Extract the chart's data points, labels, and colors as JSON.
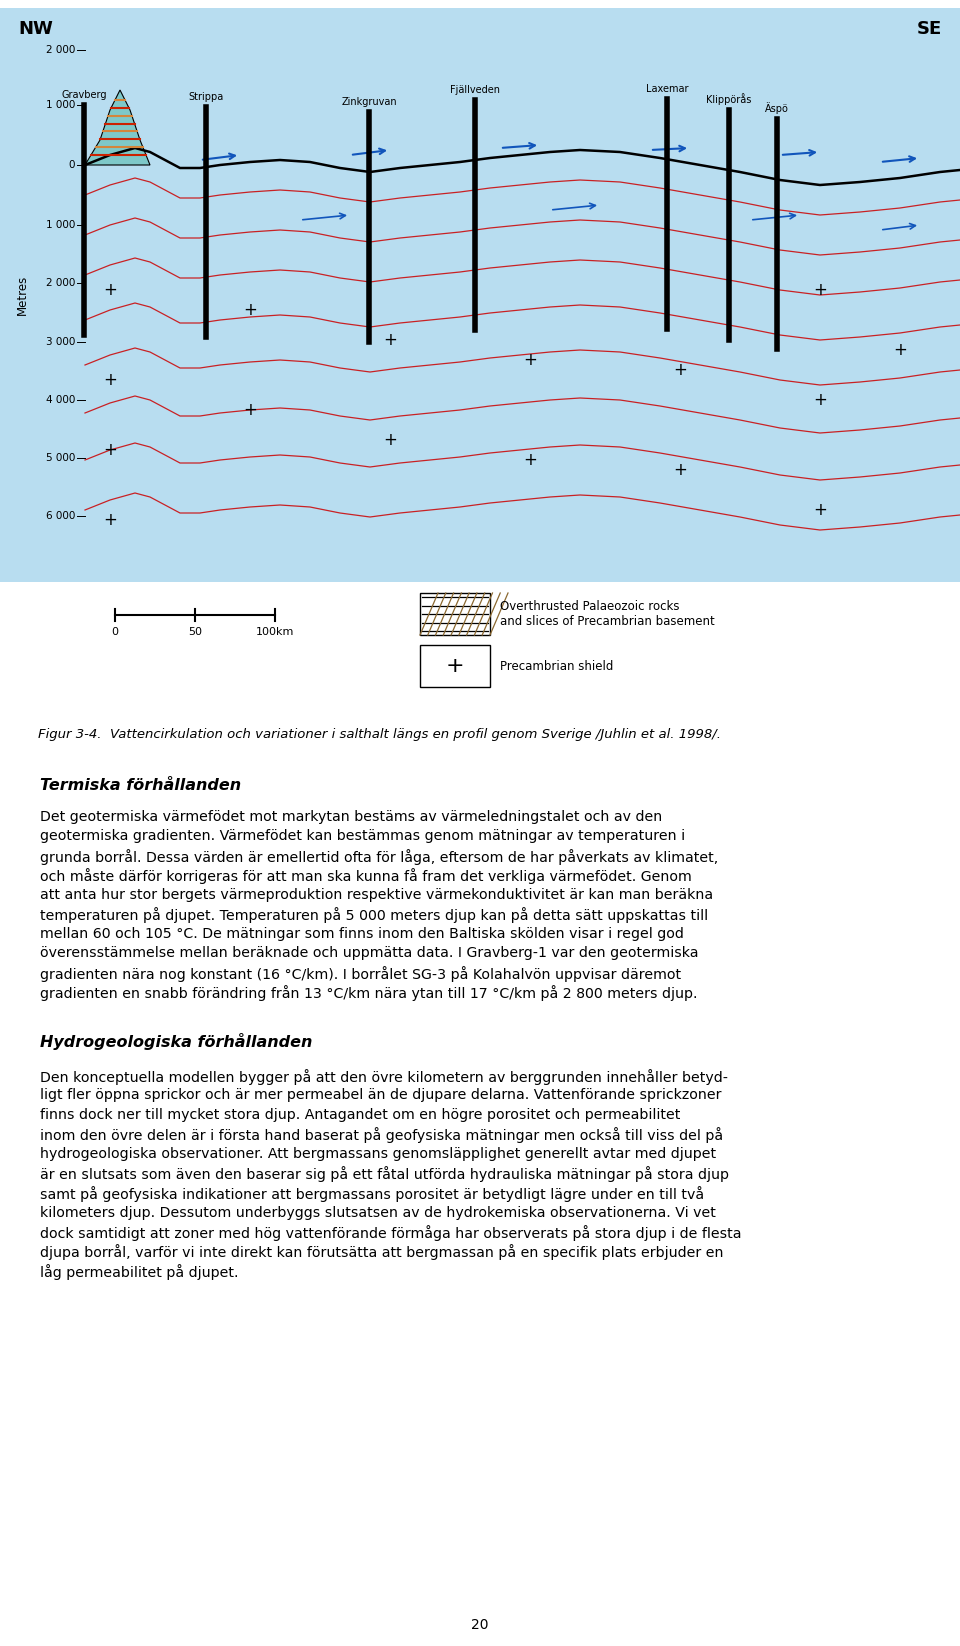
{
  "nw_label": "NW",
  "se_label": "SE",
  "fig_caption": "Figur 3-4.  Vattencirkulation och variationer i salthalt längs en profil genom Sverige /Juhlin et al. 1998/.",
  "section_heading_1": "Termiska förhållanden",
  "body_text_1_lines": [
    "Det geotermiska värmefödet mot markytan bestäms av värmeledningstalet och av den",
    "geotermiska gradienten. Värmefödet kan bestämmas genom mätningar av temperaturen i",
    "grunda borrål. Dessa värden är emellertid ofta för låga, eftersom de har påverkats av klimatet,",
    "och måste därför korrigeras för att man ska kunna få fram det verkliga värmefödet. Genom",
    "att anta hur stor bergets värmeproduktion respektive värmekonduktivitet är kan man beräkna",
    "temperaturen på djupet. Temperaturen på 5 000 meters djup kan på detta sätt uppskattas till",
    "mellan 60 och 105 °C. De mätningar som finns inom den Baltiska skölden visar i regel god",
    "överensstämmelse mellan beräknade och uppmätta data. I Gravberg-1 var den geotermiska",
    "gradienten nära nog konstant (16 °C/km). I borrålet SG-3 på Kolahalvön uppvisar däremot",
    "gradienten en snabb förändring från 13 °C/km nära ytan till 17 °C/km på 2 800 meters djup."
  ],
  "section_heading_2": "Hydrogeologiska förhållanden",
  "body_text_2_lines": [
    "Den konceptuella modellen bygger på att den övre kilometern av berggrunden innehåller betyd-",
    "ligt fler öppna sprickor och är mer permeabel än de djupare delarna. Vattenförande sprickzoner",
    "finns dock ner till mycket stora djup. Antagandet om en högre porositet och permeabilitet",
    "inom den övre delen är i första hand baserat på geofysiska mätningar men också till viss del på",
    "hydrogeologiska observationer. Att bergmassans genomsläpplighet generellt avtar med djupet",
    "är en slutsats som även den baserar sig på ett fåtal utförda hydrauliska mätningar på stora djup",
    "samt på geofysiska indikationer att bergmassans porositet är betydligt lägre under en till två",
    "kilometers djup. Dessutom underbyggs slutsatsen av de hydrokemiska observationerna. Vi vet",
    "dock samtidigt att zoner med hög vattenförande förmåga har observerats på stora djup i de flesta",
    "djupa borrål, varför vi inte direkt kan förutsätta att bergmassan på en specifik plats erbjuder en",
    "låg permeabilitet på djupet."
  ],
  "page_number": "20",
  "bg_color": "#ffffff",
  "metres_labels": [
    "2 000",
    "1 000",
    "0",
    "1 000",
    "2 000",
    "3 000",
    "4 000",
    "5 000",
    "6 000"
  ],
  "sites": [
    [
      "Gravberg",
      0.088
    ],
    [
      "Strippa",
      0.215
    ],
    [
      "Zinkgruvan",
      0.385
    ],
    [
      "Fjällveden",
      0.495
    ],
    [
      "Laxemar",
      0.695
    ],
    [
      "Äspö",
      0.81
    ],
    [
      "Klippörås",
      0.76
    ]
  ],
  "image_bg_color": "#b8ddf0",
  "legend_label_1": "Overthrusted Palaeozoic rocks\nand slices of Precambrian basement",
  "legend_label_2": "Precambrian shield",
  "scale_labels": [
    "0",
    "50",
    "100km"
  ]
}
